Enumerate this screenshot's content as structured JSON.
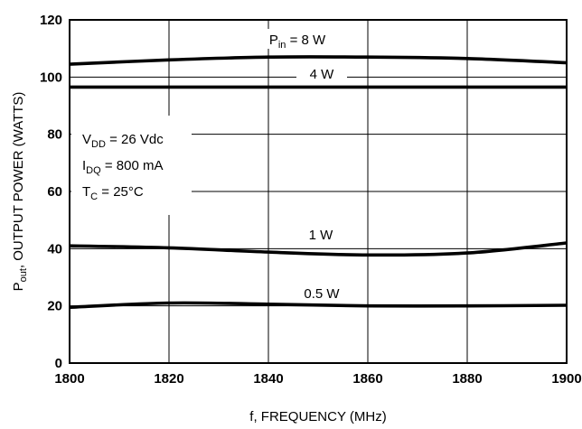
{
  "chart_data": {
    "type": "line",
    "title": "",
    "xlabel": "f, FREQUENCY (MHz)",
    "ylabel": {
      "prefix": "P",
      "sub": "out",
      "rest": ", OUTPUT POWER (WATTS)"
    },
    "xlim": [
      1800,
      1900
    ],
    "ylim": [
      0,
      120
    ],
    "xticks": [
      "1800",
      "1820",
      "1840",
      "1860",
      "1880",
      "1900"
    ],
    "yticks": [
      "0",
      "20",
      "40",
      "60",
      "80",
      "100",
      "120"
    ],
    "grid": true,
    "series": [
      {
        "name": "P_in = 8 W",
        "label": {
          "prefix": "P",
          "sub": "in",
          "rest": " = 8 W"
        },
        "x": [
          1800,
          1820,
          1840,
          1860,
          1880,
          1900
        ],
        "values": [
          104.5,
          106,
          107,
          107,
          106.5,
          105
        ]
      },
      {
        "name": "4 W",
        "label": {
          "prefix": "4 W",
          "sub": "",
          "rest": ""
        },
        "x": [
          1800,
          1820,
          1840,
          1860,
          1880,
          1900
        ],
        "values": [
          96.5,
          96.5,
          96.5,
          96.5,
          96.5,
          96.5
        ]
      },
      {
        "name": "1 W",
        "label": {
          "prefix": "1 W",
          "sub": "",
          "rest": ""
        },
        "x": [
          1800,
          1820,
          1840,
          1860,
          1880,
          1900
        ],
        "values": [
          41,
          40.3,
          38.8,
          37.8,
          38.5,
          42
        ]
      },
      {
        "name": "0.5 W",
        "label": {
          "prefix": "0.5 W",
          "sub": "",
          "rest": ""
        },
        "x": [
          1800,
          1820,
          1840,
          1860,
          1880,
          1900
        ],
        "values": [
          19.5,
          21,
          20.6,
          20,
          20,
          20.2
        ]
      }
    ],
    "conditions": [
      {
        "prefix": "V",
        "sub": "DD",
        "rest": " = 26 Vdc"
      },
      {
        "prefix": "I",
        "sub": "DQ",
        "rest": " = 800 mA"
      },
      {
        "prefix": "T",
        "sub": "C",
        "rest": " = 25°C"
      }
    ]
  }
}
